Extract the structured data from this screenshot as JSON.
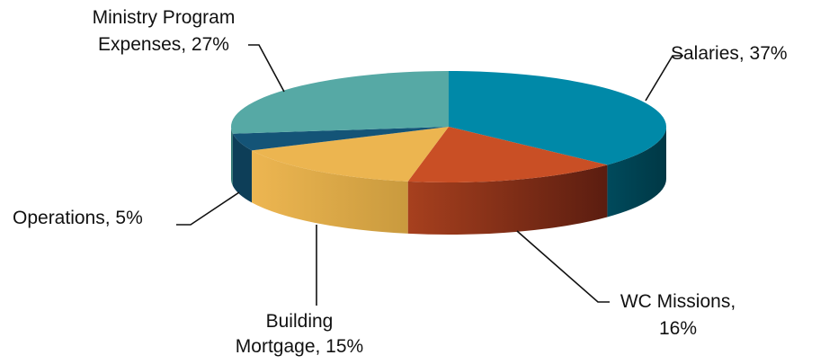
{
  "chart_data": {
    "type": "pie",
    "title": "",
    "series": [
      {
        "name": "",
        "slices": [
          {
            "label": "Salaries",
            "value": 37,
            "color": "#0089A8",
            "side": "#004253",
            "label_lines": [
              "Salaries, 37%"
            ]
          },
          {
            "label": "WC Missions",
            "value": 16,
            "color": "#C94F25",
            "side": "#6A2213",
            "label_lines": [
              "WC Missions,",
              "16%"
            ]
          },
          {
            "label": "Building Mortgage",
            "value": 15,
            "color": "#ECB550",
            "side": "#C99B3E",
            "label_lines": [
              "Building",
              "Mortgage, 15%"
            ]
          },
          {
            "label": "Operations",
            "value": 5,
            "color": "#145477",
            "side": "#0D3E58",
            "label_lines": [
              "Operations, 5%"
            ]
          },
          {
            "label": "Ministry Program Expenses",
            "value": 27,
            "color": "#56A9A5",
            "side": "#2F7673",
            "label_lines": [
              "Ministry Program",
              "Expenses, 27%"
            ]
          }
        ]
      }
    ],
    "style": "3d-pie",
    "legend": "none",
    "labels": "outside-with-leader-lines"
  }
}
